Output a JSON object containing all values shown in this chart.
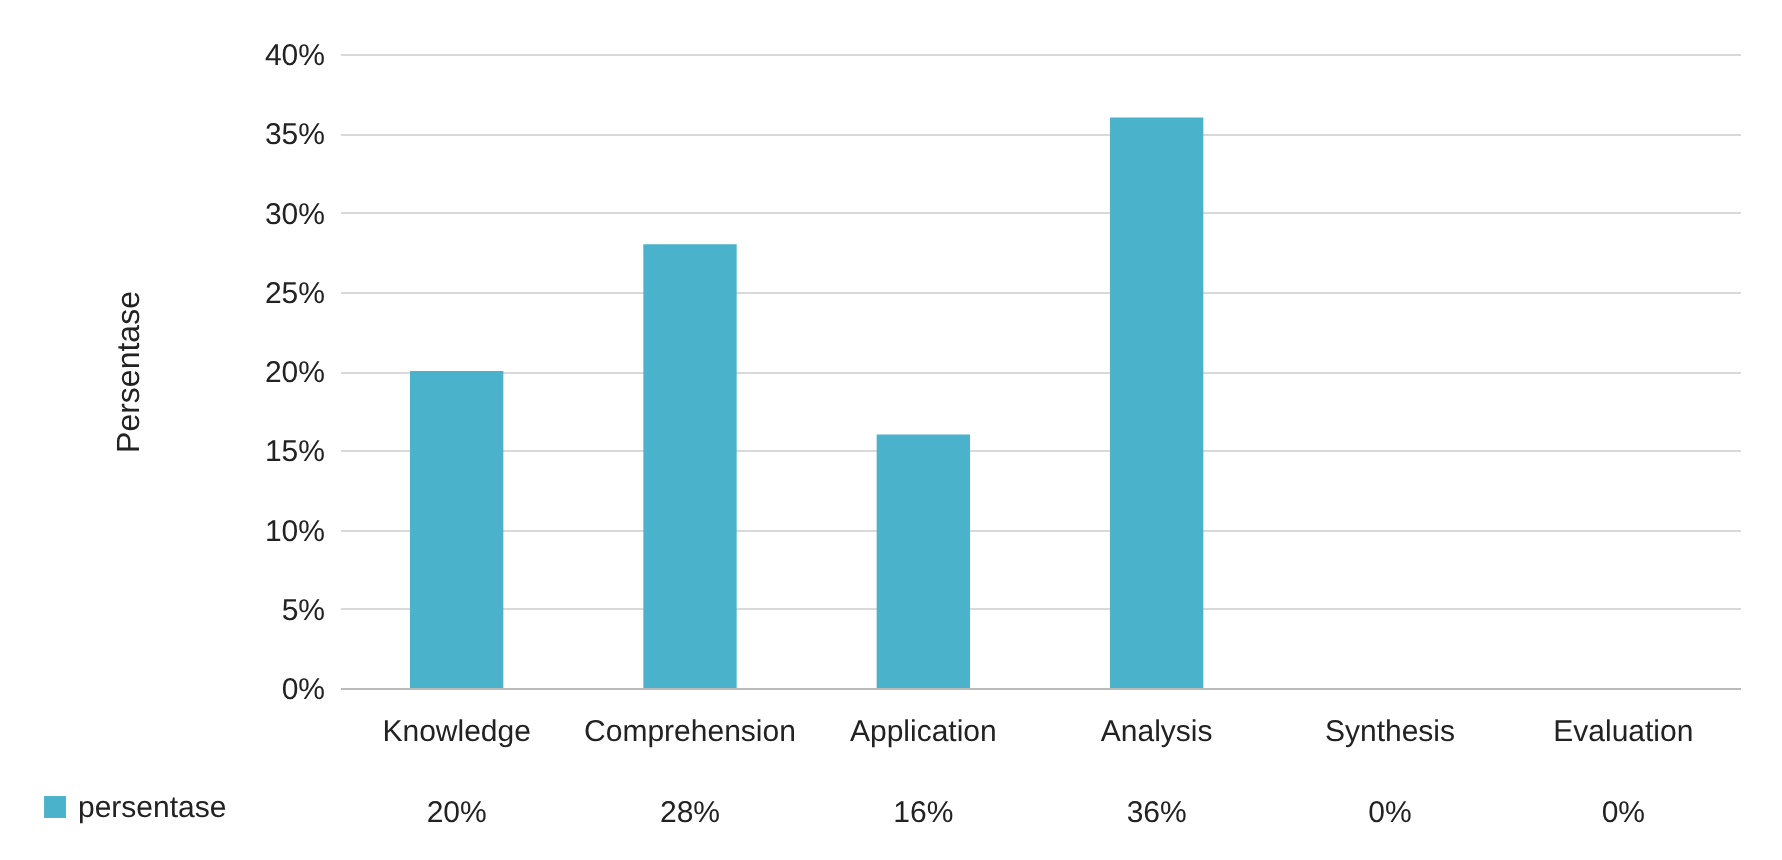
{
  "chart_data": {
    "type": "bar",
    "ylabel": "Persentase",
    "categories": [
      "Knowledge",
      "Comprehension",
      "Application",
      "Analysis",
      "Synthesis",
      "Evaluation"
    ],
    "series": [
      {
        "name": "persentase",
        "color": "#4bb2cb",
        "values": [
          20,
          28,
          16,
          36,
          0,
          0
        ],
        "value_labels": [
          "20%",
          "28%",
          "16%",
          "36%",
          "0%",
          "0%"
        ]
      }
    ],
    "ylim": [
      0,
      40
    ],
    "yticks": [
      {
        "value": 0,
        "label": "0%"
      },
      {
        "value": 5,
        "label": "5%"
      },
      {
        "value": 10,
        "label": "10%"
      },
      {
        "value": 15,
        "label": "15%"
      },
      {
        "value": 20,
        "label": "20%"
      },
      {
        "value": 25,
        "label": "25%"
      },
      {
        "value": 30,
        "label": "30%"
      },
      {
        "value": 35,
        "label": "35%"
      },
      {
        "value": 40,
        "label": "40%"
      }
    ],
    "grid": "y",
    "legend": "bottom left"
  }
}
